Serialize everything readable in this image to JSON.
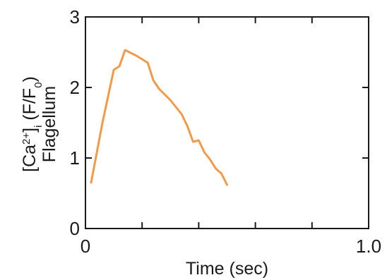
{
  "chart_data": {
    "type": "line",
    "xlabel": "Time (sec)",
    "ylabel_line1_parts": [
      "[Ca",
      "2+",
      "]",
      "i",
      " (F/F",
      "0",
      ")"
    ],
    "ylabel_line2": "Flagellum",
    "xlim": [
      0,
      1.0
    ],
    "ylim": [
      0,
      3
    ],
    "x_ticks": [
      0,
      0.2,
      0.4,
      0.6,
      0.8,
      1.0
    ],
    "x_tick_labels": [
      "0",
      "",
      "",
      "",
      "",
      "1.0"
    ],
    "y_ticks": [
      0,
      1,
      2,
      3
    ],
    "y_tick_labels": [
      "0",
      "1",
      "2",
      "3"
    ],
    "series": [
      {
        "color": "#f39a4a",
        "x": [
          0.02,
          0.06,
          0.1,
          0.12,
          0.14,
          0.18,
          0.22,
          0.24,
          0.26,
          0.3,
          0.34,
          0.36,
          0.38,
          0.4,
          0.42,
          0.44,
          0.46,
          0.48,
          0.5
        ],
        "y": [
          0.65,
          1.5,
          2.25,
          2.3,
          2.53,
          2.45,
          2.35,
          2.1,
          1.98,
          1.82,
          1.62,
          1.45,
          1.23,
          1.25,
          1.08,
          0.98,
          0.85,
          0.78,
          0.62
        ]
      }
    ],
    "grid": false,
    "legend": "none"
  }
}
